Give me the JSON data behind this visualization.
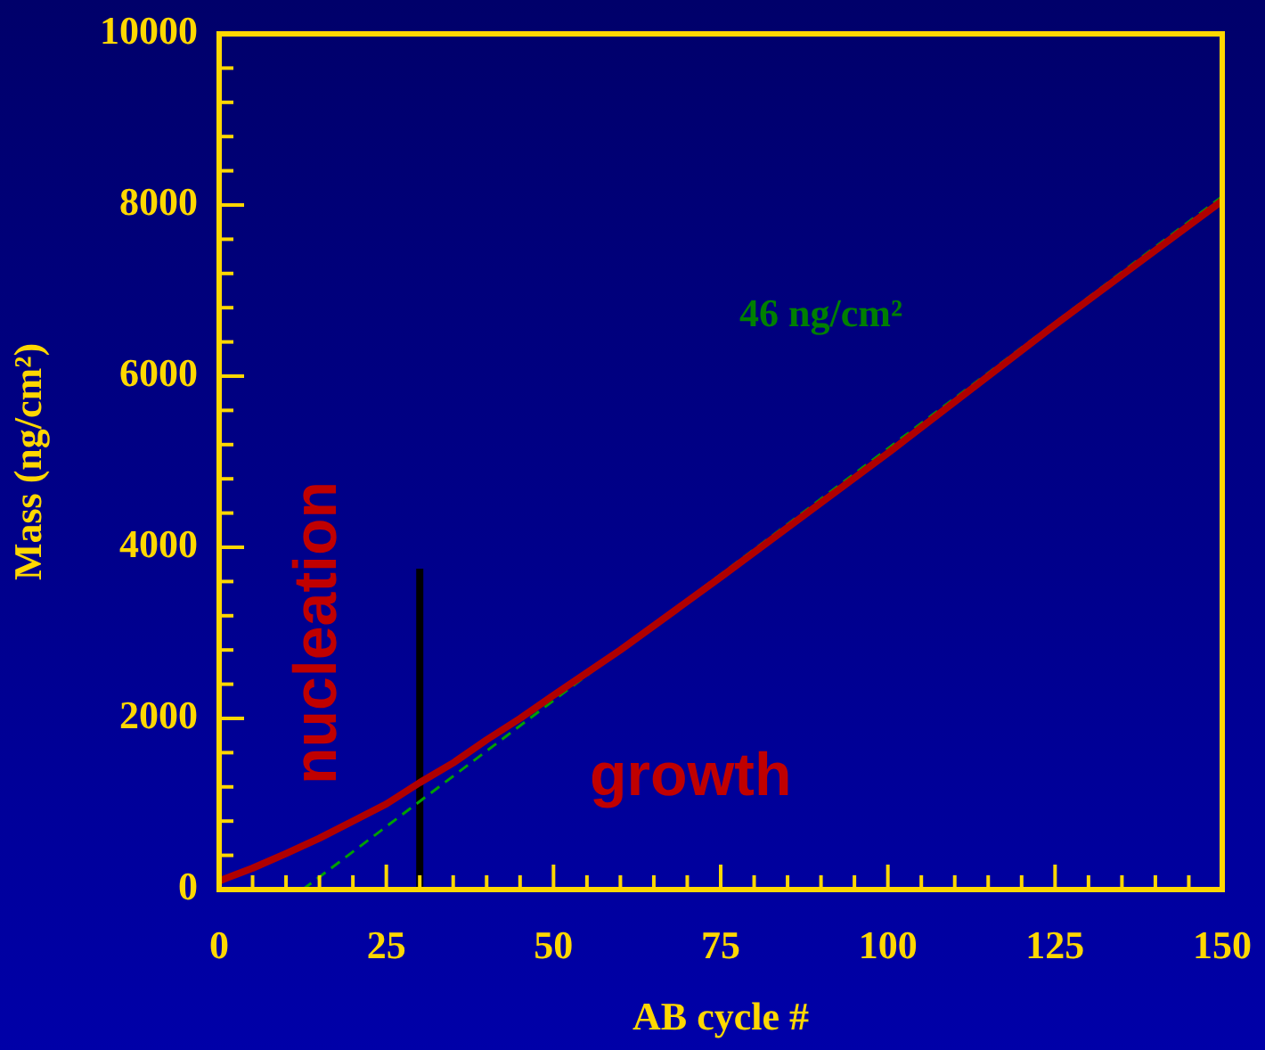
{
  "chart_data": {
    "type": "line",
    "xlabel": "AB cycle #",
    "ylabel": "Mass (ng/cm²)",
    "xlim": [
      0,
      150
    ],
    "ylim": [
      0,
      10000
    ],
    "xticks": [
      0,
      {
        "value": 5,
        "label": null
      },
      {
        "value": 10,
        "label": null
      },
      {
        "value": 15,
        "label": null
      },
      {
        "value": 20,
        "label": null
      },
      25,
      {
        "value": 30,
        "label": null
      },
      {
        "value": 35,
        "label": null
      },
      {
        "value": 40,
        "label": null
      },
      {
        "value": 45,
        "label": null
      },
      50,
      {
        "value": 55,
        "label": null
      },
      {
        "value": 60,
        "label": null
      },
      {
        "value": 65,
        "label": null
      },
      {
        "value": 70,
        "label": null
      },
      75,
      {
        "value": 80,
        "label": null
      },
      {
        "value": 85,
        "label": null
      },
      {
        "value": 90,
        "label": null
      },
      {
        "value": 95,
        "label": null
      },
      100,
      {
        "value": 105,
        "label": null
      },
      {
        "value": 110,
        "label": null
      },
      {
        "value": 115,
        "label": null
      },
      {
        "value": 120,
        "label": null
      },
      125,
      {
        "value": 130,
        "label": null
      },
      {
        "value": 135,
        "label": null
      },
      {
        "value": 140,
        "label": null
      },
      {
        "value": 145,
        "label": null
      },
      150
    ],
    "yticks": [
      0,
      {
        "value": 400,
        "label": null
      },
      {
        "value": 800,
        "label": null
      },
      {
        "value": 1200,
        "label": null
      },
      {
        "value": 1600,
        "label": null
      },
      2000,
      {
        "value": 2400,
        "label": null
      },
      {
        "value": 2800,
        "label": null
      },
      {
        "value": 3200,
        "label": null
      },
      {
        "value": 3600,
        "label": null
      },
      4000,
      {
        "value": 4400,
        "label": null
      },
      {
        "value": 4800,
        "label": null
      },
      {
        "value": 5200,
        "label": null
      },
      {
        "value": 5600,
        "label": null
      },
      6000,
      {
        "value": 6400,
        "label": null
      },
      {
        "value": 6800,
        "label": null
      },
      {
        "value": 7200,
        "label": null
      },
      {
        "value": 7600,
        "label": null
      },
      8000,
      {
        "value": 8400,
        "label": null
      },
      {
        "value": 8800,
        "label": null
      },
      {
        "value": 9200,
        "label": null
      },
      {
        "value": 9600,
        "label": null
      },
      10000
    ],
    "grid": false,
    "legend": false,
    "marker": "none",
    "series": [
      {
        "type": "line",
        "color": "#b00000",
        "x": [
          0,
          5,
          10,
          15,
          20,
          25,
          30,
          35,
          40,
          45,
          50,
          60,
          75,
          100,
          125,
          150
        ],
        "values": [
          100,
          250,
          420,
          600,
          800,
          1000,
          1250,
          1480,
          1750,
          2000,
          2270,
          2800,
          3650,
          5100,
          6600,
          8050
        ]
      },
      {
        "type": "line",
        "color": "#00a000",
        "line_style": "dashed",
        "x": [
          12.5,
          150
        ],
        "values": [
          0,
          8100
        ]
      },
      {
        "type": "line",
        "color": "#000000",
        "x": [
          30,
          30
        ],
        "values": [
          0,
          3750
        ]
      }
    ],
    "annotations": [
      "nucleation",
      "growth",
      "46 ng/cm²"
    ]
  }
}
